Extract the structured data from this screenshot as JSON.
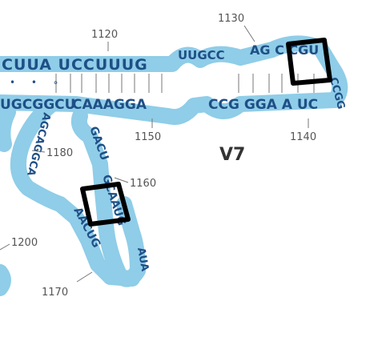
{
  "diagram": {
    "region_label": "V7",
    "colors": {
      "backbone": "#8fcde8",
      "nucleotide": "#1f4f86",
      "highlight_box": "#000000",
      "number": "#555555"
    },
    "strands": {
      "top_5prime": "CUUA UCCUUUG",
      "top_loop": "UUGCC",
      "top_right": "AG C CGU",
      "hairpin_right": "CCGG",
      "bottom_3prime": "CCG GGA A UC",
      "bottom_left": "CAAAGGA",
      "left_stem_top": "UGCGGCU",
      "inner_stem_down": "GACU",
      "inner_stem_right": "GCAAUG",
      "loop_bottom": "AUA",
      "inner_stem_up": "AACUG",
      "left_loop": "AGCAGGCA"
    },
    "pair_marks": "• • ∘",
    "position_labels": [
      "1120",
      "1130",
      "1140",
      "1150",
      "1160",
      "1170",
      "1180",
      "1200"
    ],
    "highlights": [
      "box-near-1140",
      "box-near-1160"
    ]
  }
}
